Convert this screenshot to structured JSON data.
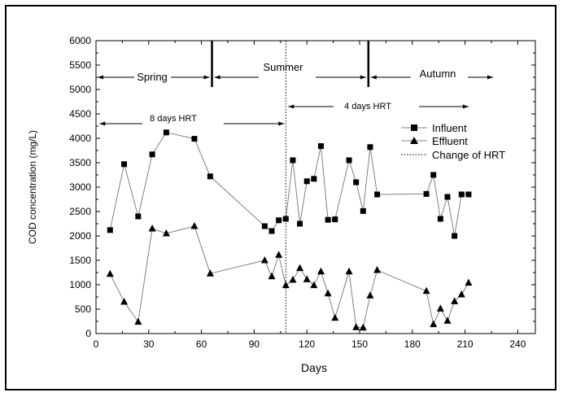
{
  "chart_data": {
    "type": "line",
    "xlabel": "Days",
    "ylabel": "COD concentration (mg/L)",
    "xlim": [
      0,
      250
    ],
    "ylim": [
      0,
      6000
    ],
    "xticks": [
      0,
      30,
      60,
      90,
      120,
      150,
      180,
      210,
      240
    ],
    "yticks": [
      0,
      500,
      1000,
      1500,
      2000,
      2500,
      3000,
      3500,
      4000,
      4500,
      5000,
      5500,
      6000
    ],
    "grid": false,
    "legend": "right",
    "series": [
      {
        "name": "Influent",
        "marker": "square",
        "x": [
          8,
          16,
          24,
          32,
          40,
          56,
          65,
          96,
          100,
          104,
          108,
          112,
          116,
          120,
          124,
          128,
          132,
          136,
          144,
          148,
          152,
          156,
          160,
          188,
          192,
          196,
          200,
          204,
          208,
          212
        ],
        "values": [
          2120,
          3470,
          2400,
          3670,
          4120,
          3990,
          3220,
          2200,
          2100,
          2320,
          2350,
          3550,
          2250,
          3120,
          3170,
          3840,
          2330,
          2340,
          3550,
          3100,
          2510,
          3820,
          2850,
          2860,
          3250,
          2350,
          2800,
          2000,
          2850,
          2850
        ]
      },
      {
        "name": "Effluent",
        "marker": "triangle",
        "x": [
          8,
          16,
          24,
          32,
          40,
          56,
          65,
          96,
          100,
          104,
          108,
          112,
          116,
          120,
          124,
          128,
          132,
          136,
          144,
          148,
          152,
          156,
          160,
          188,
          192,
          196,
          200,
          204,
          208,
          212
        ],
        "values": [
          1220,
          650,
          240,
          2150,
          2050,
          2200,
          1230,
          1500,
          1170,
          1610,
          990,
          1100,
          1340,
          1110,
          990,
          1270,
          820,
          320,
          1270,
          130,
          120,
          780,
          1300,
          870,
          190,
          510,
          260,
          660,
          800,
          1040
        ]
      }
    ],
    "hrt_change_day": 108,
    "season_dividers_days": [
      66,
      155
    ],
    "annotations": {
      "seasons": [
        "Spring",
        "Summer",
        "Autumn"
      ],
      "hrt_before": "8 days HRT",
      "hrt_after": "4 days HRT",
      "hrt_change_label": "Change of HRT"
    }
  },
  "colors": {
    "marks": "#000000",
    "lines": "#808080"
  }
}
